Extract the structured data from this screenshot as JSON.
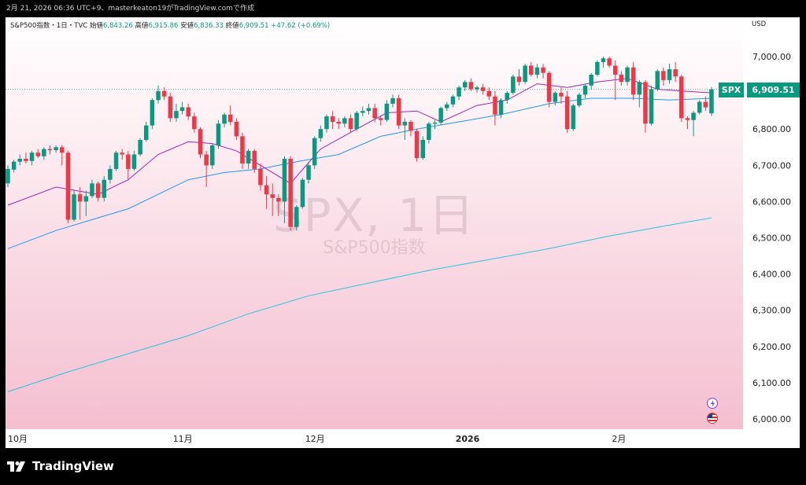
{
  "header": {
    "caption": "2月 21, 2026 06:36 UTC+9、masterkeaton19がTradingView.comで作成"
  },
  "legend": {
    "symbol": "S&P500指数・1日・TVC",
    "open_label": "始値",
    "open_value": "6,843.26",
    "high_label": "高値",
    "high_value": "6,915.86",
    "low_label": "安値",
    "low_value": "6,836.33",
    "close_label": "終値",
    "close_value": "6,909.51",
    "change": "+47.62 (+0.69%)"
  },
  "currency": "USD",
  "watermark": {
    "line1": "SPX, 1日",
    "line2": "S&P500指数"
  },
  "price_label": {
    "symbol": "SPX",
    "value": "6,909.51"
  },
  "brand": "TradingView",
  "colors": {
    "up": "#089981",
    "down": "#f23645",
    "ma_short": "#9c27b0",
    "ma_mid": "#2196f3",
    "ma_long": "#26c6da",
    "background_top": "#ffffff",
    "background_bottom": "#f4bfd0"
  },
  "icons": [
    "lightning-icon",
    "us-flag-icon"
  ],
  "chart_data": {
    "type": "candlestick",
    "ylim": [
      5980,
      7050
    ],
    "y_ticks": [
      "7,000.00",
      "6,900.00",
      "6,800.00",
      "6,700.00",
      "6,600.00",
      "6,500.00",
      "6,400.00",
      "6,300.00",
      "6,200.00",
      "6,100.00",
      "6,000.00"
    ],
    "x_ticks": [
      "10月",
      "11月",
      "12月",
      "2026",
      "2月"
    ],
    "last_close": 6909.51,
    "candles": [
      [
        6650,
        6700,
        6640,
        6690
      ],
      [
        6688,
        6715,
        6680,
        6710
      ],
      [
        6710,
        6730,
        6700,
        6718
      ],
      [
        6718,
        6735,
        6705,
        6712
      ],
      [
        6712,
        6740,
        6700,
        6735
      ],
      [
        6735,
        6745,
        6720,
        6725
      ],
      [
        6725,
        6750,
        6715,
        6745
      ],
      [
        6745,
        6755,
        6730,
        6742
      ],
      [
        6742,
        6755,
        6735,
        6750
      ],
      [
        6750,
        6756,
        6700,
        6735
      ],
      [
        6735,
        6740,
        6540,
        6550
      ],
      [
        6550,
        6630,
        6545,
        6620
      ],
      [
        6620,
        6640,
        6550,
        6600
      ],
      [
        6600,
        6630,
        6560,
        6615
      ],
      [
        6615,
        6660,
        6610,
        6650
      ],
      [
        6650,
        6655,
        6600,
        6610
      ],
      [
        6610,
        6670,
        6600,
        6660
      ],
      [
        6660,
        6700,
        6650,
        6690
      ],
      [
        6690,
        6740,
        6685,
        6735
      ],
      [
        6735,
        6745,
        6715,
        6730
      ],
      [
        6730,
        6740,
        6660,
        6690
      ],
      [
        6690,
        6740,
        6685,
        6730
      ],
      [
        6730,
        6775,
        6725,
        6770
      ],
      [
        6770,
        6820,
        6765,
        6810
      ],
      [
        6810,
        6885,
        6800,
        6880
      ],
      [
        6880,
        6920,
        6870,
        6905
      ],
      [
        6905,
        6915,
        6880,
        6890
      ],
      [
        6890,
        6900,
        6820,
        6830
      ],
      [
        6830,
        6870,
        6820,
        6850
      ],
      [
        6850,
        6875,
        6840,
        6860
      ],
      [
        6860,
        6870,
        6825,
        6835
      ],
      [
        6835,
        6845,
        6790,
        6800
      ],
      [
        6800,
        6805,
        6720,
        6730
      ],
      [
        6730,
        6740,
        6640,
        6700
      ],
      [
        6700,
        6760,
        6690,
        6755
      ],
      [
        6755,
        6825,
        6745,
        6815
      ],
      [
        6815,
        6845,
        6805,
        6840
      ],
      [
        6840,
        6865,
        6810,
        6820
      ],
      [
        6820,
        6830,
        6770,
        6780
      ],
      [
        6780,
        6790,
        6690,
        6705
      ],
      [
        6705,
        6745,
        6690,
        6740
      ],
      [
        6740,
        6745,
        6680,
        6690
      ],
      [
        6690,
        6705,
        6630,
        6645
      ],
      [
        6645,
        6670,
        6580,
        6620
      ],
      [
        6620,
        6650,
        6560,
        6610
      ],
      [
        6610,
        6620,
        6560,
        6600
      ],
      [
        6600,
        6725,
        6540,
        6718
      ],
      [
        6718,
        6725,
        6520,
        6530
      ],
      [
        6530,
        6590,
        6520,
        6585
      ],
      [
        6585,
        6665,
        6580,
        6660
      ],
      [
        6660,
        6710,
        6650,
        6700
      ],
      [
        6700,
        6780,
        6690,
        6775
      ],
      [
        6775,
        6810,
        6765,
        6800
      ],
      [
        6800,
        6840,
        6790,
        6835
      ],
      [
        6835,
        6850,
        6800,
        6820
      ],
      [
        6820,
        6830,
        6800,
        6815
      ],
      [
        6815,
        6835,
        6805,
        6830
      ],
      [
        6830,
        6840,
        6790,
        6800
      ],
      [
        6800,
        6850,
        6795,
        6845
      ],
      [
        6845,
        6862,
        6835,
        6850
      ],
      [
        6850,
        6870,
        6840,
        6858
      ],
      [
        6858,
        6870,
        6820,
        6830
      ],
      [
        6830,
        6835,
        6810,
        6825
      ],
      [
        6825,
        6880,
        6820,
        6870
      ],
      [
        6870,
        6895,
        6860,
        6885
      ],
      [
        6885,
        6895,
        6800,
        6810
      ],
      [
        6810,
        6830,
        6770,
        6820
      ],
      [
        6820,
        6825,
        6780,
        6795
      ],
      [
        6795,
        6800,
        6710,
        6720
      ],
      [
        6720,
        6780,
        6715,
        6770
      ],
      [
        6770,
        6820,
        6760,
        6815
      ],
      [
        6815,
        6825,
        6800,
        6818
      ],
      [
        6818,
        6862,
        6812,
        6858
      ],
      [
        6858,
        6875,
        6850,
        6868
      ],
      [
        6868,
        6895,
        6860,
        6890
      ],
      [
        6890,
        6920,
        6880,
        6915
      ],
      [
        6915,
        6935,
        6905,
        6930
      ],
      [
        6930,
        6940,
        6905,
        6910
      ],
      [
        6910,
        6920,
        6900,
        6915
      ],
      [
        6915,
        6925,
        6895,
        6905
      ],
      [
        6905,
        6915,
        6880,
        6890
      ],
      [
        6890,
        6905,
        6810,
        6840
      ],
      [
        6840,
        6885,
        6830,
        6880
      ],
      [
        6880,
        6905,
        6870,
        6900
      ],
      [
        6900,
        6950,
        6895,
        6945
      ],
      [
        6945,
        6965,
        6920,
        6930
      ],
      [
        6930,
        6980,
        6925,
        6975
      ],
      [
        6975,
        6985,
        6945,
        6950
      ],
      [
        6950,
        6980,
        6940,
        6970
      ],
      [
        6970,
        6980,
        6940,
        6955
      ],
      [
        6955,
        6960,
        6860,
        6875
      ],
      [
        6875,
        6905,
        6865,
        6900
      ],
      [
        6900,
        6915,
        6870,
        6890
      ],
      [
        6890,
        6905,
        6790,
        6800
      ],
      [
        6800,
        6870,
        6795,
        6865
      ],
      [
        6865,
        6900,
        6860,
        6895
      ],
      [
        6895,
        6925,
        6885,
        6920
      ],
      [
        6920,
        6955,
        6910,
        6950
      ],
      [
        6950,
        6990,
        6945,
        6985
      ],
      [
        6985,
        7000,
        6970,
        6995
      ],
      [
        6995,
        7000,
        6970,
        6975
      ],
      [
        6975,
        6990,
        6880,
        6950
      ],
      [
        6950,
        6960,
        6920,
        6930
      ],
      [
        6930,
        6975,
        6920,
        6970
      ],
      [
        6970,
        6985,
        6880,
        6895
      ],
      [
        6895,
        6935,
        6860,
        6930
      ],
      [
        6930,
        6935,
        6790,
        6815
      ],
      [
        6815,
        6920,
        6810,
        6910
      ],
      [
        6910,
        6965,
        6905,
        6960
      ],
      [
        6960,
        6970,
        6920,
        6935
      ],
      [
        6935,
        6980,
        6925,
        6965
      ],
      [
        6965,
        6985,
        6930,
        6945
      ],
      [
        6945,
        6950,
        6820,
        6830
      ],
      [
        6830,
        6835,
        6800,
        6825
      ],
      [
        6825,
        6850,
        6780,
        6845
      ],
      [
        6845,
        6880,
        6840,
        6875
      ],
      [
        6875,
        6890,
        6850,
        6860
      ],
      [
        6843.26,
        6915.86,
        6836.33,
        6909.51
      ]
    ],
    "ma_short": [
      [
        0,
        6590
      ],
      [
        8,
        6640
      ],
      [
        15,
        6620
      ],
      [
        20,
        6660
      ],
      [
        25,
        6730
      ],
      [
        30,
        6765
      ],
      [
        34,
        6760
      ],
      [
        38,
        6740
      ],
      [
        42,
        6700
      ],
      [
        47,
        6650
      ],
      [
        52,
        6745
      ],
      [
        58,
        6800
      ],
      [
        63,
        6845
      ],
      [
        68,
        6850
      ],
      [
        72,
        6820
      ],
      [
        78,
        6865
      ],
      [
        83,
        6880
      ],
      [
        88,
        6925
      ],
      [
        93,
        6915
      ],
      [
        98,
        6930
      ],
      [
        103,
        6940
      ],
      [
        108,
        6910
      ],
      [
        112,
        6905
      ],
      [
        117,
        6900
      ]
    ],
    "ma_mid": [
      [
        0,
        6470
      ],
      [
        8,
        6520
      ],
      [
        15,
        6555
      ],
      [
        20,
        6580
      ],
      [
        25,
        6620
      ],
      [
        30,
        6660
      ],
      [
        36,
        6680
      ],
      [
        42,
        6690
      ],
      [
        48,
        6710
      ],
      [
        55,
        6730
      ],
      [
        62,
        6780
      ],
      [
        68,
        6800
      ],
      [
        75,
        6820
      ],
      [
        82,
        6840
      ],
      [
        90,
        6870
      ],
      [
        97,
        6885
      ],
      [
        104,
        6885
      ],
      [
        110,
        6880
      ],
      [
        117,
        6885
      ]
    ],
    "ma_long": [
      [
        0,
        6075
      ],
      [
        10,
        6130
      ],
      [
        20,
        6180
      ],
      [
        30,
        6230
      ],
      [
        40,
        6290
      ],
      [
        50,
        6340
      ],
      [
        60,
        6375
      ],
      [
        70,
        6410
      ],
      [
        80,
        6440
      ],
      [
        90,
        6470
      ],
      [
        100,
        6505
      ],
      [
        110,
        6535
      ],
      [
        117,
        6555
      ]
    ]
  }
}
